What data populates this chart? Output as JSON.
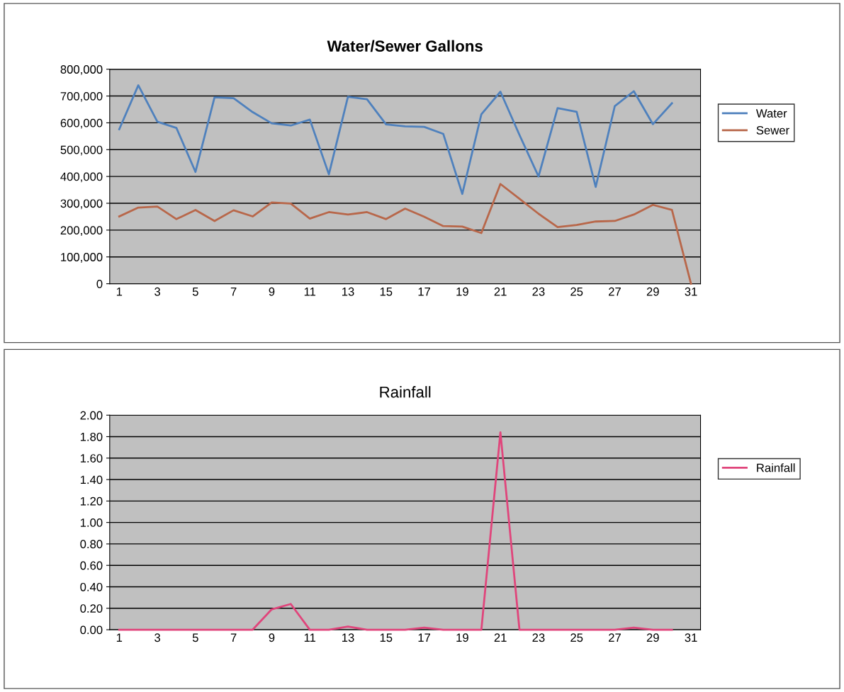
{
  "chart_data": [
    {
      "type": "line",
      "title": "Water/Sewer Gallons",
      "categories": [
        "1",
        null,
        "3",
        null,
        "5",
        null,
        "7",
        null,
        "9",
        null,
        "11",
        null,
        "13",
        null,
        "15",
        null,
        "17",
        null,
        "19",
        null,
        "21",
        null,
        "23",
        null,
        "25",
        null,
        "27",
        null,
        "29",
        null,
        "31"
      ],
      "series": [
        {
          "name": "Water",
          "color": "#4f81bd",
          "values": [
            576000,
            740000,
            604000,
            581000,
            417000,
            695000,
            692000,
            640000,
            598000,
            590000,
            612000,
            408000,
            697000,
            688000,
            594000,
            587000,
            585000,
            559000,
            335000,
            632000,
            716000,
            555000,
            400000,
            655000,
            641000,
            361000,
            662000,
            718000,
            595000,
            673000,
            null
          ]
        },
        {
          "name": "Sewer",
          "color": "#b8674a",
          "values": [
            251000,
            284000,
            288000,
            241000,
            275000,
            234000,
            274000,
            251000,
            303000,
            299000,
            243000,
            267000,
            258000,
            267000,
            241000,
            280000,
            250000,
            215000,
            213000,
            189000,
            372000,
            317000,
            261000,
            211000,
            219000,
            232000,
            234000,
            258000,
            294000,
            275000,
            0
          ]
        }
      ],
      "ylim": [
        0,
        800000
      ],
      "yticks": [
        0,
        {
          "value": 100000,
          "label": "100,000"
        },
        {
          "value": 200000,
          "label": "200,000"
        },
        {
          "value": 300000,
          "label": "300,000"
        },
        {
          "value": 400000,
          "label": "400,000"
        },
        {
          "value": 500000,
          "label": "500,000"
        },
        {
          "value": 600000,
          "label": "600,000"
        },
        {
          "value": 700000,
          "label": "700,000"
        },
        {
          "value": 800000,
          "label": "800,000"
        }
      ],
      "grid": "y",
      "legend": "right",
      "marker": "none",
      "line_style": "solid"
    },
    {
      "type": "line",
      "title": "Rainfall",
      "categories": [
        "1",
        null,
        "3",
        null,
        "5",
        null,
        "7",
        null,
        "9",
        null,
        "11",
        null,
        "13",
        null,
        "15",
        null,
        "17",
        null,
        "19",
        null,
        "21",
        null,
        "23",
        null,
        "25",
        null,
        "27",
        null,
        "29",
        null,
        "31"
      ],
      "series": [
        {
          "name": "Rainfall",
          "color": "#e0457b",
          "values": [
            0,
            0,
            0,
            0,
            0,
            0,
            0,
            0,
            0.19,
            0.24,
            0,
            0,
            0.03,
            0,
            0,
            0,
            0.02,
            0,
            0,
            0,
            1.84,
            0,
            0,
            0,
            0,
            0,
            0,
            0.02,
            0,
            0,
            null
          ]
        }
      ],
      "ylim": [
        0,
        2
      ],
      "yticks": [
        {
          "value": 0,
          "label": "0.00"
        },
        {
          "value": 0.2,
          "label": "0.20"
        },
        {
          "value": 0.4,
          "label": "0.40"
        },
        {
          "value": 0.6,
          "label": "0.60"
        },
        {
          "value": 0.8,
          "label": "0.80"
        },
        {
          "value": 1.0,
          "label": "1.00"
        },
        {
          "value": 1.2,
          "label": "1.20"
        },
        {
          "value": 1.4,
          "label": "1.40"
        },
        {
          "value": 1.6,
          "label": "1.60"
        },
        {
          "value": 1.8,
          "label": "1.80"
        },
        {
          "value": 2.0,
          "label": "2.00"
        }
      ],
      "grid": "y",
      "legend": "right",
      "marker": "none",
      "line_style": "solid"
    }
  ]
}
